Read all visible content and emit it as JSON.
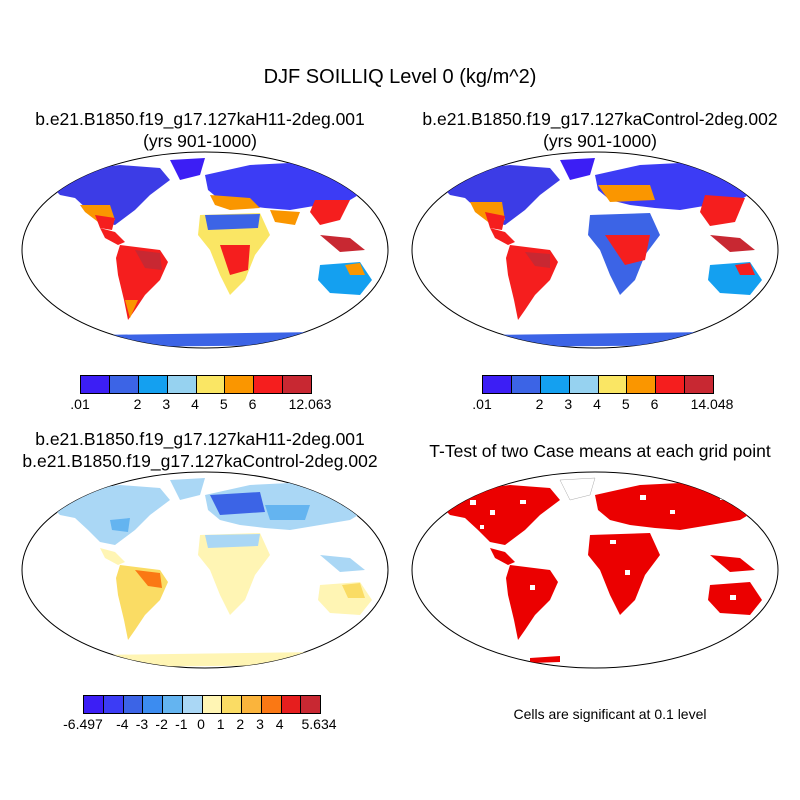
{
  "title": "DJF SOILLIQ Level 0 (kg/m^2)",
  "panels": {
    "p1": {
      "title_line1": "b.e21.B1850.f19_g17.127kaH11-2deg.001",
      "title_line2": "(yrs 901-1000)"
    },
    "p2": {
      "title_line1": "b.e21.B1850.f19_g17.127kaControl-2deg.002",
      "title_line2": "(yrs 901-1000)"
    },
    "p3": {
      "title_line1": "b.e21.B1850.f19_g17.127kaH11-2deg.001",
      "title_line2": "b.e21.B1850.f19_g17.127kaControl-2deg.002"
    },
    "p4": {
      "title_line1": "T-Test of two Case means at each grid point",
      "note": "Cells are significant at 0.1 level"
    }
  },
  "colorbars": {
    "cb1": {
      "colors": [
        "#3c1ef5",
        "#3c64e6",
        "#14a0f0",
        "#96d2f0",
        "#fae664",
        "#fa9600",
        "#f51e1e",
        "#c82832"
      ],
      "labels": [
        ".01",
        "2",
        "3",
        "4",
        "5",
        "6",
        "12.063"
      ]
    },
    "cb2": {
      "colors": [
        "#3c1ef5",
        "#3c64e6",
        "#14a0f0",
        "#96d2f0",
        "#fae664",
        "#fa9600",
        "#f51e1e",
        "#c82832"
      ],
      "labels": [
        ".01",
        "2",
        "3",
        "4",
        "5",
        "6",
        "14.048"
      ]
    },
    "cb3": {
      "colors": [
        "#3c1ef5",
        "#3c3cf5",
        "#3c64e6",
        "#3c8cf0",
        "#64b4f0",
        "#aad7f5",
        "#fff5b4",
        "#fadc64",
        "#fab43c",
        "#fa7814",
        "#e61e1e",
        "#c82832"
      ],
      "labels": [
        "-6.497",
        "-4",
        "-3",
        "-2",
        "-1",
        "0",
        "1",
        "2",
        "3",
        "4",
        "5.634"
      ]
    }
  }
}
